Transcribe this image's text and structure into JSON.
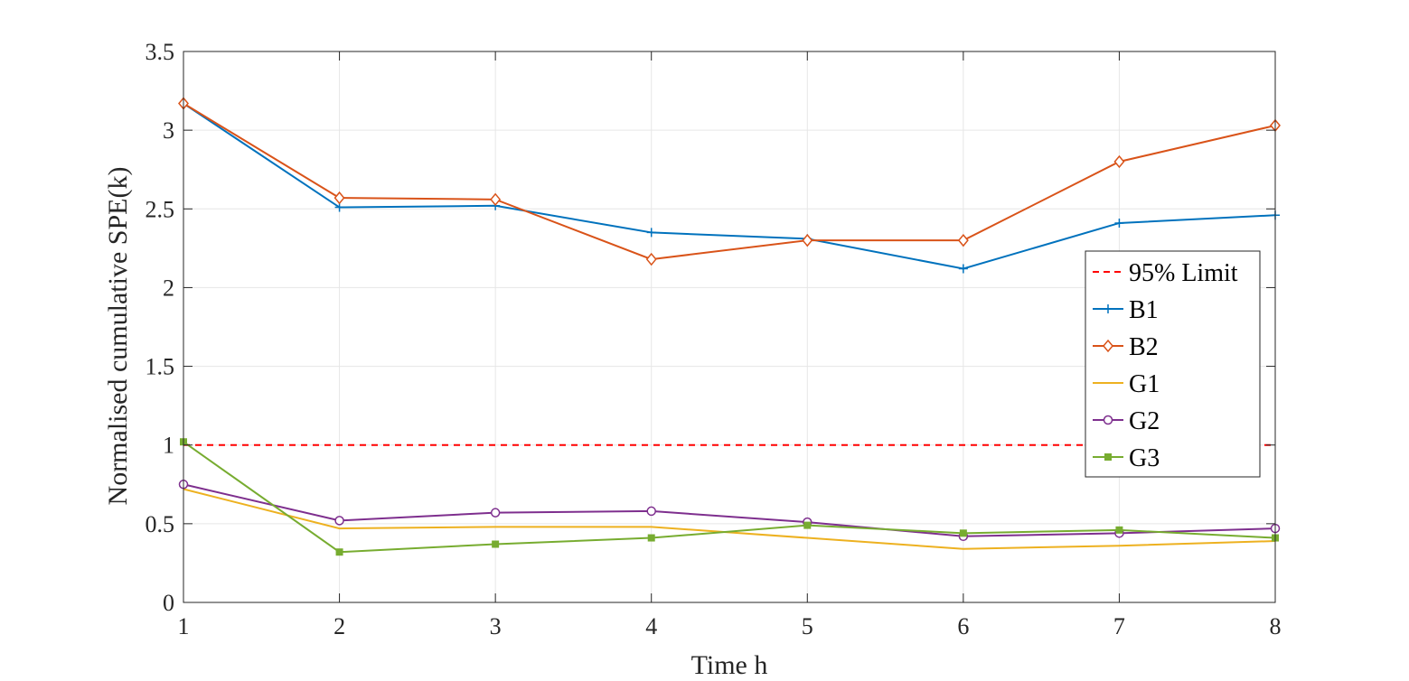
{
  "chart_data": {
    "type": "line",
    "xlabel": "Time h",
    "ylabel": "Normalised cumulative SPE(k)",
    "xlim": [
      1,
      8
    ],
    "ylim": [
      0,
      3.5
    ],
    "xticks": [
      "1",
      "2",
      "3",
      "4",
      "5",
      "6",
      "7",
      "8"
    ],
    "yticks": [
      "0",
      "0.5",
      "1",
      "1.5",
      "2",
      "2.5",
      "3",
      "3.5"
    ],
    "grid": true,
    "legend_position": "right",
    "x": [
      1,
      2,
      3,
      4,
      5,
      6,
      7,
      8
    ],
    "limit": {
      "name": "95% Limit",
      "value": 1.0,
      "color": "#ff0000",
      "style": "dashed"
    },
    "series": [
      {
        "name": "B1",
        "color": "#0072bd",
        "marker": "plus",
        "values": [
          3.17,
          2.51,
          2.52,
          2.35,
          2.31,
          2.12,
          2.41,
          2.46
        ]
      },
      {
        "name": "B2",
        "color": "#d95319",
        "marker": "diamond",
        "values": [
          3.17,
          2.57,
          2.56,
          2.18,
          2.3,
          2.3,
          2.8,
          3.03
        ]
      },
      {
        "name": "G1",
        "color": "#edb120",
        "marker": "none",
        "values": [
          0.72,
          0.47,
          0.48,
          0.48,
          0.41,
          0.34,
          0.36,
          0.39
        ]
      },
      {
        "name": "G2",
        "color": "#7e2f8e",
        "marker": "circle",
        "values": [
          0.75,
          0.52,
          0.57,
          0.58,
          0.51,
          0.42,
          0.44,
          0.47
        ]
      },
      {
        "name": "G3",
        "color": "#77ac30",
        "marker": "square",
        "values": [
          1.02,
          0.32,
          0.37,
          0.41,
          0.49,
          0.44,
          0.46,
          0.41
        ]
      }
    ]
  }
}
